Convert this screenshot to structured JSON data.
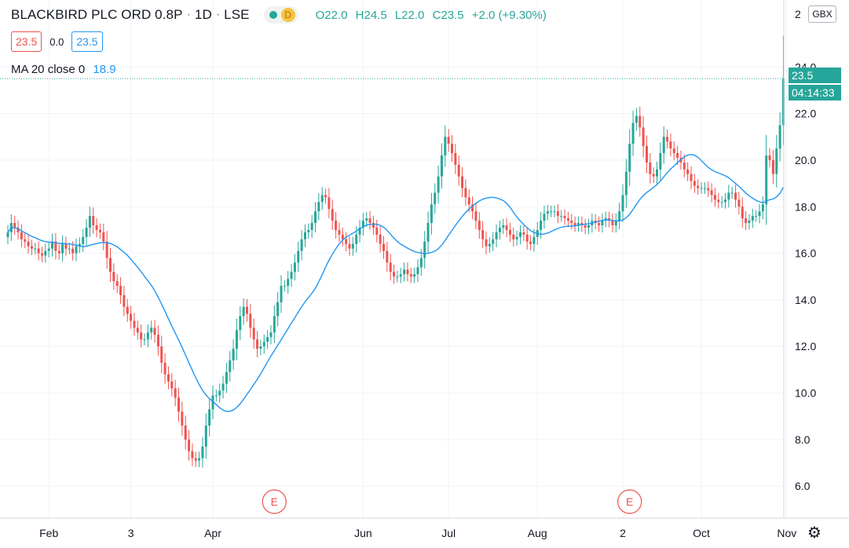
{
  "header": {
    "symbol": "BLACKBIRD PLC ORD 0.8P",
    "interval": "1D",
    "exchange": "LSE",
    "separator": "·",
    "status_badge": "D",
    "ohlc": {
      "o": "O22.0",
      "h": "H24.5",
      "l": "L22.0",
      "c": "C23.5",
      "change": "+2.0 (+9.30%)"
    },
    "price_boxes": {
      "bid": "23.5",
      "spread": "0.0",
      "ask": "23.5"
    },
    "ma": {
      "label": "MA 20 close 0",
      "value": "18.9"
    },
    "currency": "GBX",
    "axis_top_partial": "2"
  },
  "price_tag": {
    "price": "23.5",
    "countdown": "04:14:33"
  },
  "event_marker": "E",
  "icons": {
    "settings": "gear-icon",
    "status": "market-open-dot-icon"
  },
  "colors": {
    "up": "#26a69a",
    "down": "#ef5350",
    "ma": "#2196f3",
    "grid": "#f0f3fa",
    "last_price_line": "#26a69a"
  },
  "chart_data": {
    "type": "candlestick",
    "title": "BLACKBIRD PLC ORD 0.8P · 1D · LSE",
    "ylabel": "",
    "ylim": [
      5.3,
      26.2
    ],
    "y_ticks": [
      "24.0",
      "22.0",
      "20.0",
      "18.0",
      "16.0",
      "14.0",
      "12.0",
      "10.0",
      "8.0",
      "6.0"
    ],
    "x_ticks": [
      {
        "label": "Feb",
        "index": 12
      },
      {
        "label": "3",
        "index": 36
      },
      {
        "label": "Apr",
        "index": 60
      },
      {
        "label": "Jun",
        "index": 104
      },
      {
        "label": "Jul",
        "index": 129
      },
      {
        "label": "Aug",
        "index": 155
      },
      {
        "label": "2",
        "index": 180
      },
      {
        "label": "Oct",
        "index": 203
      },
      {
        "label": "Nov",
        "index": 228
      }
    ],
    "event_indices": [
      78,
      182
    ],
    "last_price": 23.5,
    "close": [
      16.9,
      17.3,
      17.1,
      16.9,
      16.6,
      16.5,
      16.3,
      16.2,
      16.2,
      16.0,
      15.9,
      16.1,
      16.2,
      16.5,
      16.1,
      16.0,
      16.4,
      16.2,
      16.2,
      16.0,
      16.3,
      16.4,
      16.7,
      17.1,
      17.6,
      17.2,
      17.0,
      16.9,
      16.5,
      15.8,
      15.2,
      14.8,
      14.6,
      14.2,
      13.7,
      13.4,
      13.1,
      12.8,
      12.6,
      12.3,
      12.3,
      12.6,
      12.8,
      12.5,
      12.0,
      11.3,
      10.8,
      10.5,
      10.2,
      9.8,
      9.2,
      8.6,
      8.0,
      7.5,
      7.2,
      7.1,
      7.2,
      7.7,
      8.6,
      9.3,
      9.9,
      9.9,
      10.1,
      10.4,
      10.9,
      11.4,
      11.9,
      12.7,
      13.3,
      13.7,
      13.4,
      12.8,
      12.3,
      11.9,
      12.0,
      12.2,
      12.4,
      12.6,
      13.3,
      13.9,
      14.6,
      14.6,
      14.9,
      15.2,
      15.6,
      16.1,
      16.6,
      16.9,
      17.0,
      17.3,
      17.8,
      18.2,
      18.5,
      18.4,
      17.9,
      17.4,
      17.0,
      16.8,
      16.6,
      16.4,
      16.2,
      16.4,
      16.8,
      17.1,
      17.4,
      17.5,
      17.3,
      17.1,
      16.8,
      16.4,
      16.1,
      15.6,
      15.2,
      15.0,
      15.0,
      15.1,
      15.3,
      15.1,
      15.0,
      15.1,
      15.4,
      15.8,
      16.5,
      17.3,
      18.1,
      18.6,
      19.3,
      20.2,
      21.0,
      20.7,
      20.3,
      19.8,
      19.3,
      18.8,
      18.4,
      18.1,
      17.8,
      17.4,
      17.0,
      16.6,
      16.3,
      16.4,
      16.6,
      16.9,
      17.1,
      17.2,
      17.0,
      16.8,
      16.6,
      16.7,
      16.9,
      16.8,
      16.5,
      16.4,
      16.7,
      17.0,
      17.4,
      17.7,
      17.8,
      17.8,
      17.8,
      17.6,
      17.6,
      17.5,
      17.4,
      17.3,
      17.2,
      17.3,
      17.2,
      17.1,
      17.2,
      17.4,
      17.3,
      17.2,
      17.4,
      17.5,
      17.4,
      17.2,
      17.4,
      17.8,
      18.5,
      19.5,
      20.7,
      21.6,
      21.9,
      21.4,
      20.6,
      19.9,
      19.4,
      19.3,
      19.6,
      20.3,
      21.0,
      20.8,
      20.5,
      20.3,
      20.1,
      19.9,
      19.6,
      19.4,
      19.1,
      18.9,
      18.8,
      18.8,
      18.8,
      18.7,
      18.5,
      18.3,
      18.2,
      18.2,
      18.3,
      18.6,
      18.6,
      18.3,
      18.0,
      17.5,
      17.3,
      17.4,
      17.6,
      17.6,
      17.8,
      18.1,
      20.2,
      20.0,
      19.4,
      20.5,
      21.5,
      23.5
    ],
    "series": [
      {
        "name": "BLACKBIRD PLC ORD 0.8P",
        "kind": "ohlc"
      },
      {
        "name": "MA 20 close 0",
        "kind": "moving_average",
        "period": 20
      }
    ],
    "grid": true,
    "legend": "top-left"
  }
}
